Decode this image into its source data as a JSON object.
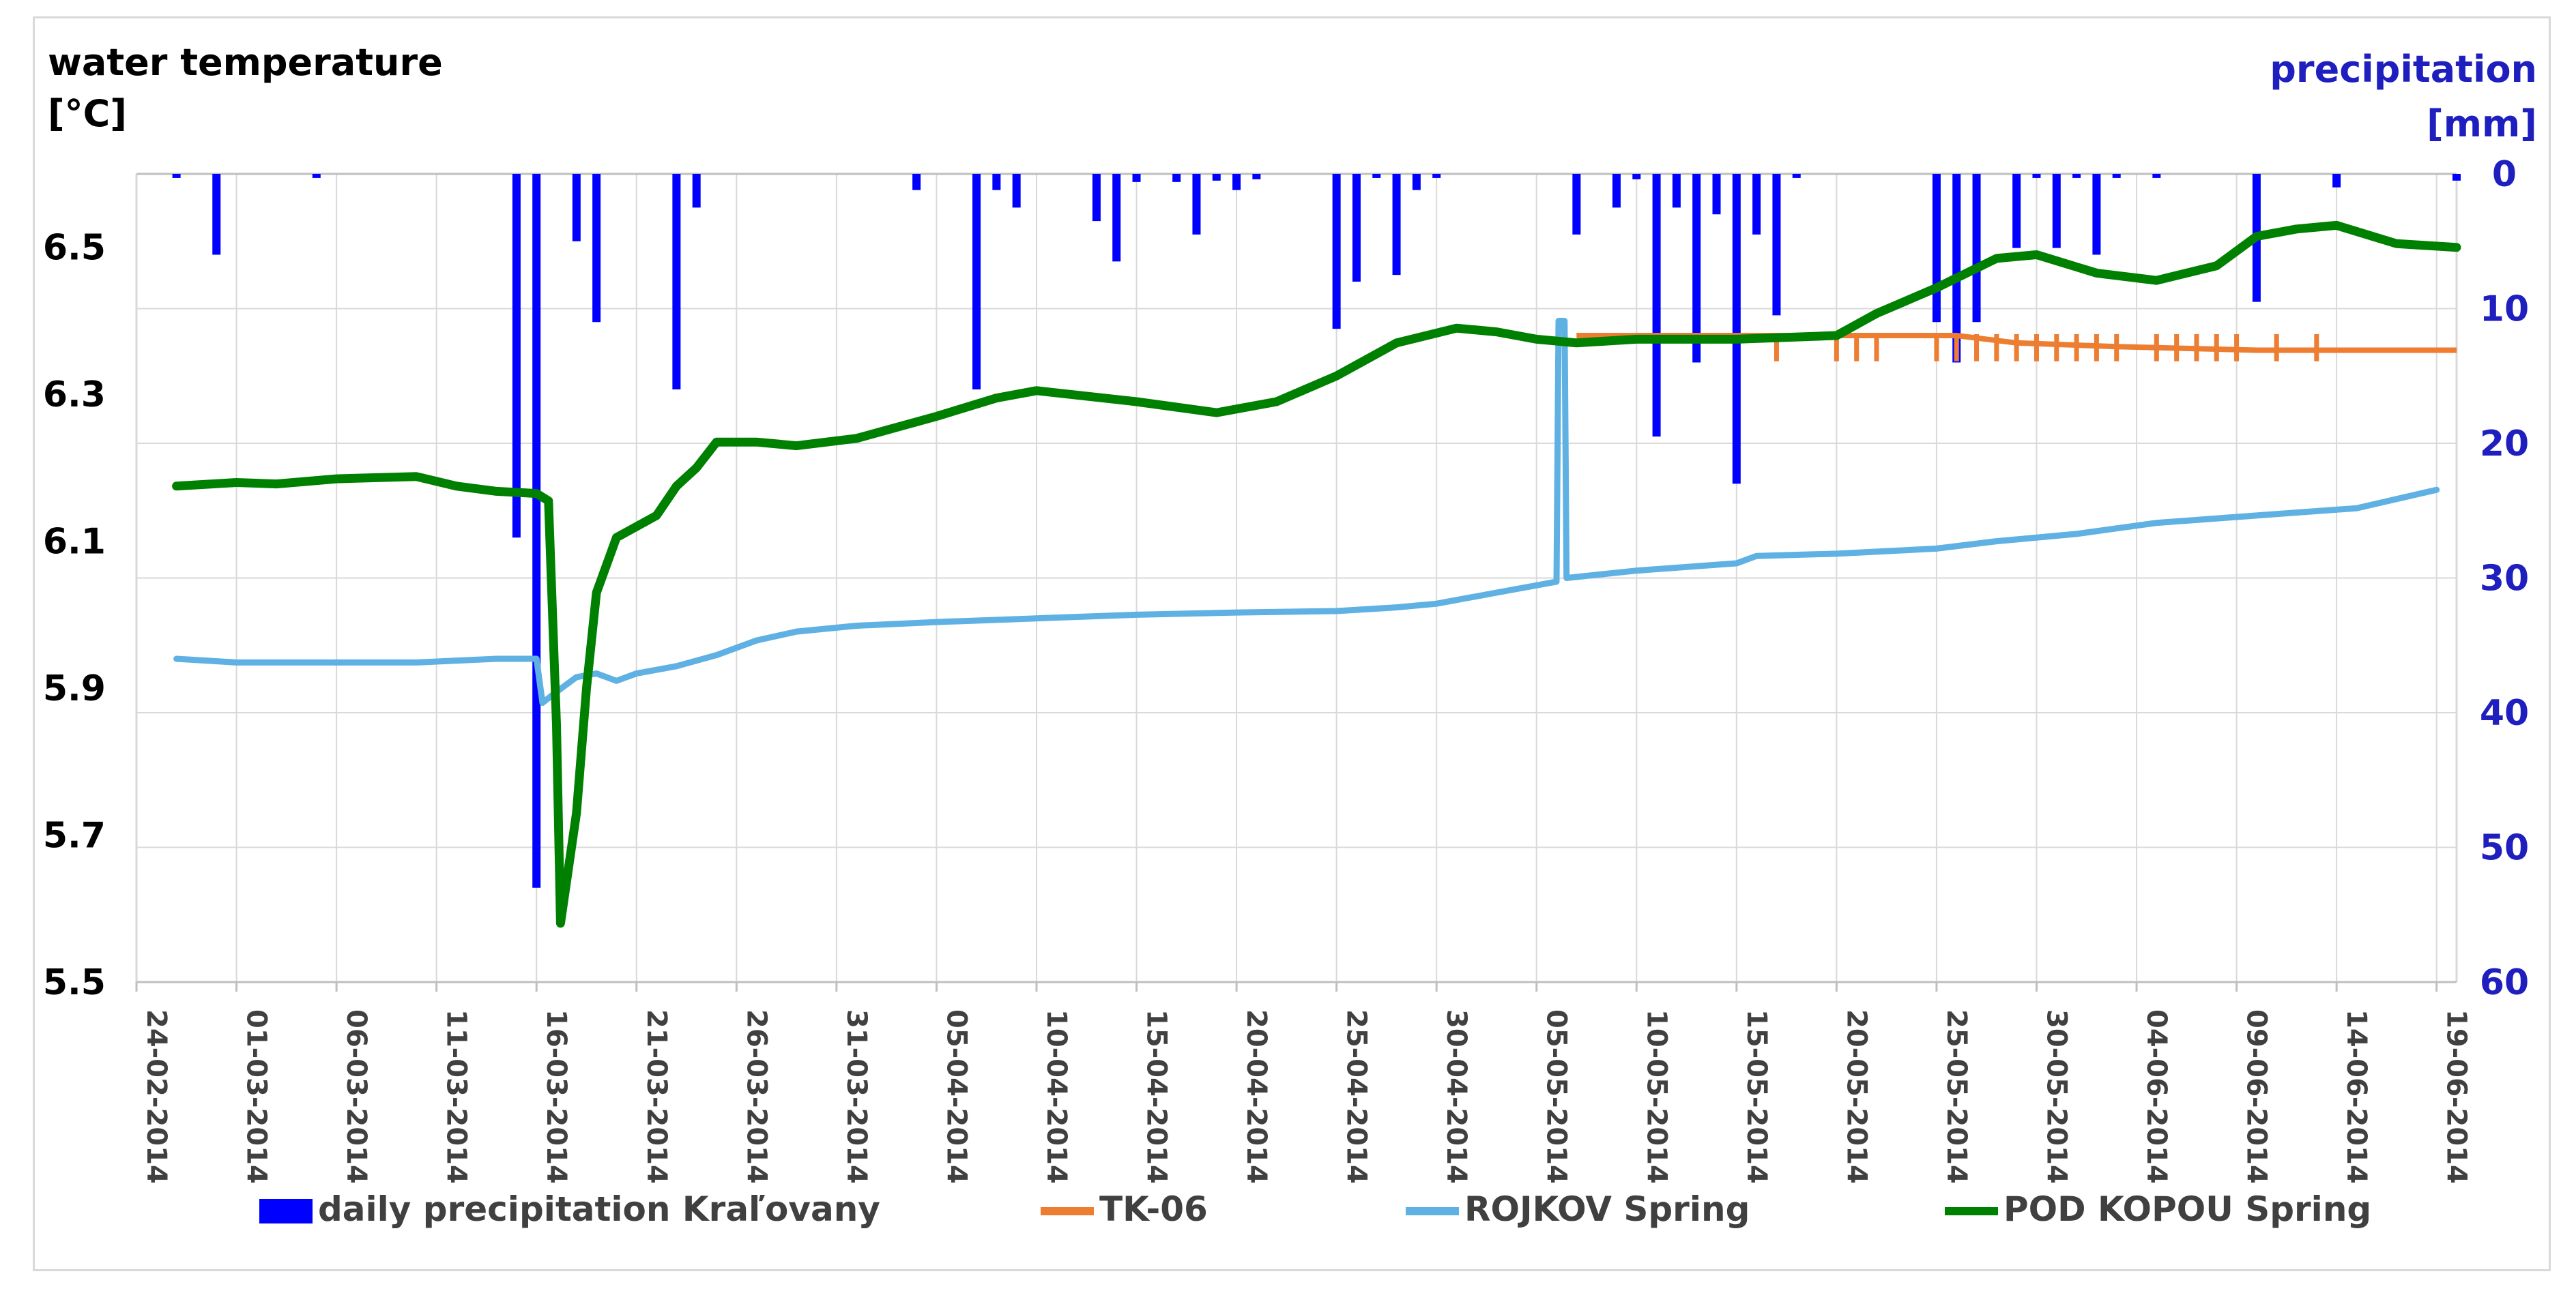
{
  "chart_data": {
    "type": "combo",
    "left_axis": {
      "label_line1": "water temperature",
      "label_line2": "[°C]",
      "ticks": [
        "6.5",
        "6.3",
        "6.1",
        "5.9",
        "5.7",
        "5.5"
      ],
      "ylim": [
        5.5,
        6.6
      ]
    },
    "right_axis": {
      "label_line1": "precipitation",
      "label_line2": "[mm]",
      "ticks": [
        "0",
        "10",
        "20",
        "30",
        "40",
        "50",
        "60"
      ],
      "ylim": [
        0,
        60
      ],
      "inverted": true
    },
    "x_axis": {
      "start": "2014-02-24",
      "end": "2014-06-20",
      "tick_labels": [
        "24-02-2014",
        "01-03-2014",
        "06-03-2014",
        "11-03-2014",
        "16-03-2014",
        "21-03-2014",
        "26-03-2014",
        "31-03-2014",
        "05-04-2014",
        "10-04-2014",
        "15-04-2014",
        "20-04-2014",
        "25-04-2014",
        "30-04-2014",
        "05-05-2014",
        "10-05-2014",
        "15-05-2014",
        "20-05-2014",
        "25-05-2014",
        "30-05-2014",
        "04-06-2014",
        "09-06-2014",
        "14-06-2014",
        "19-06-2014"
      ]
    },
    "legend_position": "bottom",
    "grid": true,
    "series": [
      {
        "name": "daily precipitation Kraľovany",
        "type": "bar",
        "axis": "right",
        "color": "#0000ff",
        "points": [
          [
            "2014-02-26",
            0.3
          ],
          [
            "2014-02-28",
            6
          ],
          [
            "2014-03-05",
            0.3
          ],
          [
            "2014-03-15",
            27
          ],
          [
            "2014-03-16",
            53
          ],
          [
            "2014-03-18",
            5
          ],
          [
            "2014-03-19",
            11
          ],
          [
            "2014-03-23",
            16
          ],
          [
            "2014-03-24",
            2.5
          ],
          [
            "2014-04-04",
            1.2
          ],
          [
            "2014-04-07",
            16
          ],
          [
            "2014-04-08",
            1.2
          ],
          [
            "2014-04-09",
            2.5
          ],
          [
            "2014-04-13",
            3.5
          ],
          [
            "2014-04-14",
            6.5
          ],
          [
            "2014-04-15",
            0.6
          ],
          [
            "2014-04-17",
            0.6
          ],
          [
            "2014-04-18",
            4.5
          ],
          [
            "2014-04-19",
            0.5
          ],
          [
            "2014-04-20",
            1.2
          ],
          [
            "2014-04-21",
            0.4
          ],
          [
            "2014-04-25",
            11.5
          ],
          [
            "2014-04-26",
            8
          ],
          [
            "2014-04-27",
            0.3
          ],
          [
            "2014-04-28",
            7.5
          ],
          [
            "2014-04-29",
            1.2
          ],
          [
            "2014-04-30",
            0.3
          ],
          [
            "2014-05-07",
            4.5
          ],
          [
            "2014-05-09",
            2.5
          ],
          [
            "2014-05-10",
            0.4
          ],
          [
            "2014-05-11",
            19.5
          ],
          [
            "2014-05-12",
            2.5
          ],
          [
            "2014-05-13",
            14
          ],
          [
            "2014-05-14",
            3
          ],
          [
            "2014-05-15",
            23
          ],
          [
            "2014-05-16",
            4.5
          ],
          [
            "2014-05-17",
            10.5
          ],
          [
            "2014-05-18",
            0.3
          ],
          [
            "2014-05-25",
            11
          ],
          [
            "2014-05-26",
            14
          ],
          [
            "2014-05-27",
            11
          ],
          [
            "2014-05-29",
            5.5
          ],
          [
            "2014-05-30",
            0.3
          ],
          [
            "2014-05-31",
            5.5
          ],
          [
            "2014-06-01",
            0.3
          ],
          [
            "2014-06-02",
            6
          ],
          [
            "2014-06-03",
            0.3
          ],
          [
            "2014-06-05",
            0.3
          ],
          [
            "2014-06-10",
            9.5
          ],
          [
            "2014-06-14",
            1
          ],
          [
            "2014-06-20",
            0.5
          ]
        ]
      },
      {
        "name": "TK-06",
        "type": "line",
        "axis": "left",
        "color": "#ed7d31",
        "points": [
          [
            "2014-05-07",
            6.38
          ],
          [
            "2014-05-17",
            6.38
          ],
          [
            "2014-05-22",
            6.38
          ],
          [
            "2014-05-26",
            6.38
          ],
          [
            "2014-05-29",
            6.37
          ],
          [
            "2014-06-03",
            6.365
          ],
          [
            "2014-06-10",
            6.36
          ],
          [
            "2014-06-20",
            6.36
          ]
        ],
        "dips_to": 6.345,
        "dip_dates": [
          "2014-05-17",
          "2014-05-20",
          "2014-05-21",
          "2014-05-22",
          "2014-05-25",
          "2014-05-26",
          "2014-05-27",
          "2014-05-28",
          "2014-05-29",
          "2014-05-30",
          "2014-05-31",
          "2014-06-01",
          "2014-06-02",
          "2014-06-03",
          "2014-06-05",
          "2014-06-06",
          "2014-06-07",
          "2014-06-08",
          "2014-06-09",
          "2014-06-11",
          "2014-06-13"
        ]
      },
      {
        "name": "ROJKOV Spring",
        "type": "line",
        "axis": "left",
        "color": "#5fb1e3",
        "points": [
          [
            "2014-02-26",
            5.94
          ],
          [
            "2014-03-01",
            5.935
          ],
          [
            "2014-03-10",
            5.935
          ],
          [
            "2014-03-14",
            5.94
          ],
          [
            "2014-03-16",
            5.94
          ],
          [
            "2014-03-16.3",
            5.88
          ],
          [
            "2014-03-17",
            5.895
          ],
          [
            "2014-03-18",
            5.915
          ],
          [
            "2014-03-19",
            5.92
          ],
          [
            "2014-03-20",
            5.91
          ],
          [
            "2014-03-21",
            5.92
          ],
          [
            "2014-03-23",
            5.93
          ],
          [
            "2014-03-25",
            5.945
          ],
          [
            "2014-03-27",
            5.965
          ],
          [
            "2014-03-29",
            5.977
          ],
          [
            "2014-04-01",
            5.985
          ],
          [
            "2014-04-05",
            5.99
          ],
          [
            "2014-04-10",
            5.995
          ],
          [
            "2014-04-15",
            6.0
          ],
          [
            "2014-04-20",
            6.003
          ],
          [
            "2014-04-25",
            6.005
          ],
          [
            "2014-04-28",
            6.01
          ],
          [
            "2014-04-30",
            6.015
          ],
          [
            "2014-05-03",
            6.03
          ],
          [
            "2014-05-06",
            6.045
          ],
          [
            "2014-05-06.1",
            6.4
          ],
          [
            "2014-05-06.4",
            6.4
          ],
          [
            "2014-05-06.5",
            6.05
          ],
          [
            "2014-05-10",
            6.06
          ],
          [
            "2014-05-15",
            6.07
          ],
          [
            "2014-05-16",
            6.08
          ],
          [
            "2014-05-20",
            6.083
          ],
          [
            "2014-05-25",
            6.09
          ],
          [
            "2014-05-28",
            6.1
          ],
          [
            "2014-06-01",
            6.11
          ],
          [
            "2014-06-05",
            6.125
          ],
          [
            "2014-06-10",
            6.135
          ],
          [
            "2014-06-15",
            6.145
          ],
          [
            "2014-06-19",
            6.17
          ]
        ]
      },
      {
        "name": "POD KOPOU Spring",
        "type": "line",
        "axis": "left",
        "color": "#008000",
        "points": [
          [
            "2014-02-26",
            6.175
          ],
          [
            "2014-03-01",
            6.18
          ],
          [
            "2014-03-03",
            6.178
          ],
          [
            "2014-03-06",
            6.185
          ],
          [
            "2014-03-10",
            6.188
          ],
          [
            "2014-03-12",
            6.175
          ],
          [
            "2014-03-14",
            6.168
          ],
          [
            "2014-03-16",
            6.165
          ],
          [
            "2014-03-16.6",
            6.155
          ],
          [
            "2014-03-17",
            5.85
          ],
          [
            "2014-03-17.2",
            5.58
          ],
          [
            "2014-03-18",
            5.73
          ],
          [
            "2014-03-18.5",
            5.9
          ],
          [
            "2014-03-19",
            6.03
          ],
          [
            "2014-03-20",
            6.105
          ],
          [
            "2014-03-21",
            6.12
          ],
          [
            "2014-03-22",
            6.135
          ],
          [
            "2014-03-23",
            6.175
          ],
          [
            "2014-03-24",
            6.2
          ],
          [
            "2014-03-25",
            6.235
          ],
          [
            "2014-03-27",
            6.235
          ],
          [
            "2014-03-29",
            6.23
          ],
          [
            "2014-04-01",
            6.24
          ],
          [
            "2014-04-05",
            6.27
          ],
          [
            "2014-04-08",
            6.295
          ],
          [
            "2014-04-10",
            6.305
          ],
          [
            "2014-04-15",
            6.29
          ],
          [
            "2014-04-19",
            6.275
          ],
          [
            "2014-04-22",
            6.29
          ],
          [
            "2014-04-25",
            6.325
          ],
          [
            "2014-04-28",
            6.37
          ],
          [
            "2014-05-01",
            6.39
          ],
          [
            "2014-05-03",
            6.385
          ],
          [
            "2014-05-05",
            6.375
          ],
          [
            "2014-05-07",
            6.37
          ],
          [
            "2014-05-10",
            6.375
          ],
          [
            "2014-05-15",
            6.375
          ],
          [
            "2014-05-20",
            6.38
          ],
          [
            "2014-05-22",
            6.41
          ],
          [
            "2014-05-25",
            6.445
          ],
          [
            "2014-05-28",
            6.485
          ],
          [
            "2014-05-30",
            6.49
          ],
          [
            "2014-06-02",
            6.465
          ],
          [
            "2014-06-05",
            6.455
          ],
          [
            "2014-06-08",
            6.475
          ],
          [
            "2014-06-10",
            6.515
          ],
          [
            "2014-06-12",
            6.525
          ],
          [
            "2014-06-14",
            6.53
          ],
          [
            "2014-06-17",
            6.505
          ],
          [
            "2014-06-20",
            6.5
          ]
        ]
      }
    ]
  }
}
